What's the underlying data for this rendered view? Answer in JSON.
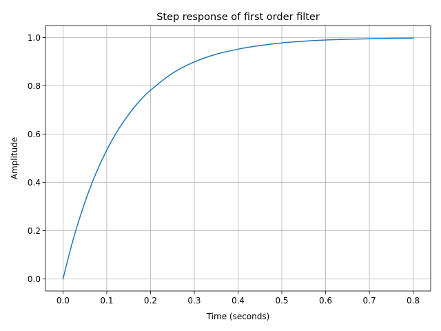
{
  "chart_data": {
    "type": "line",
    "title": "Step response of first order filter",
    "xlabel": "Time (seconds)",
    "ylabel": "Amplitude",
    "xlim": [
      -0.04,
      0.84
    ],
    "ylim": [
      -0.05,
      1.05
    ],
    "xticks": [
      0.0,
      0.1,
      0.2,
      0.3,
      0.4,
      0.5,
      0.6,
      0.7,
      0.8
    ],
    "xtick_labels": [
      "0.0",
      "0.1",
      "0.2",
      "0.3",
      "0.4",
      "0.5",
      "0.6",
      "0.7",
      "0.8"
    ],
    "yticks": [
      0.0,
      0.2,
      0.4,
      0.6,
      0.8,
      1.0
    ],
    "ytick_labels": [
      "0.0",
      "0.2",
      "0.4",
      "0.6",
      "0.8",
      "1.0"
    ],
    "grid": true,
    "series": [
      {
        "color": "#1f77b4",
        "x": [
          0.0,
          0.02,
          0.04,
          0.06,
          0.08,
          0.1,
          0.12,
          0.14,
          0.16,
          0.18,
          0.2,
          0.25,
          0.3,
          0.35,
          0.4,
          0.45,
          0.5,
          0.55,
          0.6,
          0.65,
          0.7,
          0.75,
          0.8
        ],
        "y": [
          0.0,
          0.142,
          0.263,
          0.368,
          0.457,
          0.534,
          0.6,
          0.656,
          0.705,
          0.747,
          0.782,
          0.852,
          0.899,
          0.931,
          0.952,
          0.967,
          0.978,
          0.985,
          0.99,
          0.993,
          0.995,
          0.997,
          0.998
        ]
      }
    ]
  }
}
